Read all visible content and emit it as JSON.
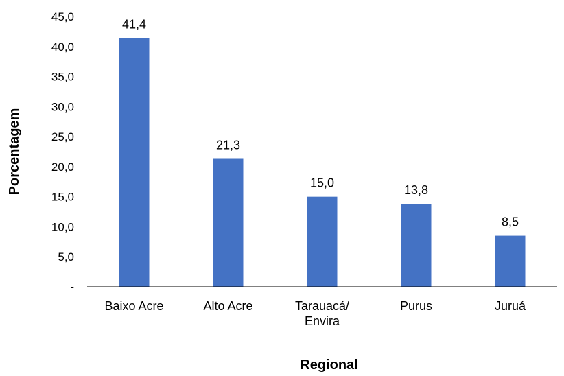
{
  "chart_data": {
    "type": "bar",
    "categories": [
      [
        "Baixo Acre"
      ],
      [
        "Alto Acre"
      ],
      [
        "Tarauacá/",
        "Envira"
      ],
      [
        "Purus"
      ],
      [
        "Juruá"
      ]
    ],
    "values": [
      41.4,
      21.3,
      15.0,
      13.8,
      8.5
    ],
    "value_labels": [
      "41,4",
      "21,3",
      "15,0",
      "13,8",
      "8,5"
    ],
    "y_ticks": [
      0,
      5,
      10,
      15,
      20,
      25,
      30,
      35,
      40,
      45
    ],
    "y_tick_labels": [
      "-",
      "5,0",
      "10,0",
      "15,0",
      "20,0",
      "25,0",
      "30,0",
      "35,0",
      "40,0",
      "45,0"
    ],
    "ylim": [
      0,
      45
    ],
    "xlabel": "Regional",
    "ylabel": "Porcentagem",
    "grid": false,
    "legend": "none",
    "bar_color": "#4472C4"
  }
}
